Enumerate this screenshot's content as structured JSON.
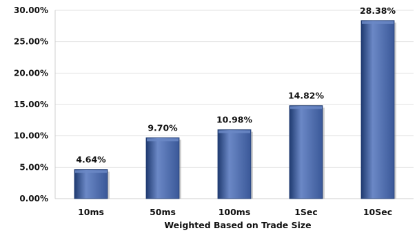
{
  "chart_data": {
    "type": "bar",
    "title": "",
    "xlabel": "Weighted Based on Trade Size",
    "ylabel": "",
    "categories": [
      "10ms",
      "50ms",
      "100ms",
      "1Sec",
      "10Sec"
    ],
    "values": [
      4.64,
      9.7,
      10.98,
      14.82,
      28.38
    ],
    "data_labels": [
      "4.64%",
      "9.70%",
      "10.98%",
      "14.82%",
      "28.38%"
    ],
    "ylim": [
      0,
      30
    ],
    "yticks": [
      0,
      5,
      10,
      15,
      20,
      25,
      30
    ],
    "ytick_labels": [
      "0.00%",
      "5.00%",
      "10.00%",
      "15.00%",
      "20.00%",
      "25.00%",
      "30.00%"
    ],
    "grid": true,
    "legend": "none",
    "colors": {
      "bar": "#3a5898",
      "bar_light": "#6b88c6",
      "bar_dark": "#1f3a70",
      "grid": "#e2e2e2",
      "axis": "#cfcfcf",
      "text": "#111111"
    }
  }
}
